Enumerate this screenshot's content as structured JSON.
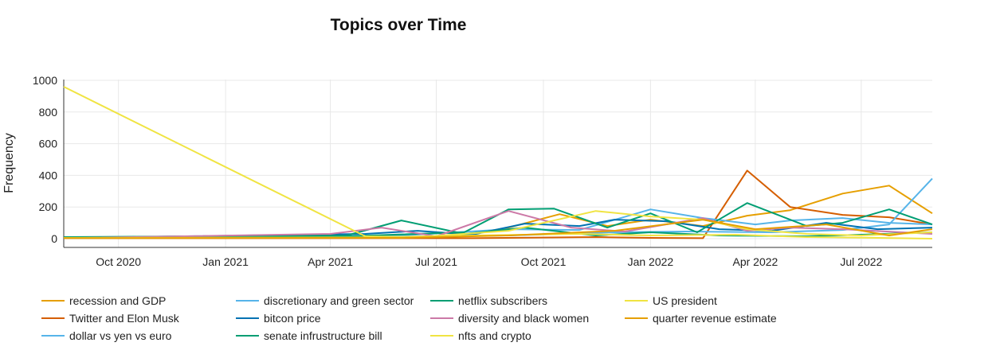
{
  "chart_data": {
    "type": "line",
    "title": "Topics over Time",
    "xlabel": "",
    "ylabel": "Frequency",
    "ylim": [
      -50,
      1000
    ],
    "xlim": [
      "2020-08-15",
      "2022-08-31"
    ],
    "grid": true,
    "legend_position": "bottom",
    "x_ticks": [
      {
        "date": "2020-10-01",
        "label": "Oct 2020"
      },
      {
        "date": "2021-01-01",
        "label": "Jan 2021"
      },
      {
        "date": "2021-04-01",
        "label": "Apr 2021"
      },
      {
        "date": "2021-07-01",
        "label": "Jul 2021"
      },
      {
        "date": "2021-10-01",
        "label": "Oct 2021"
      },
      {
        "date": "2022-01-01",
        "label": "Jan 2022"
      },
      {
        "date": "2022-04-01",
        "label": "Apr 2022"
      },
      {
        "date": "2022-07-01",
        "label": "Jul 2022"
      }
    ],
    "y_ticks": [
      0,
      200,
      400,
      600,
      800,
      1000
    ],
    "series": [
      {
        "name": "recession and GDP",
        "color": "#E69F00",
        "points": [
          [
            "2020-08-15",
            5
          ],
          [
            "2021-04-15",
            15
          ],
          [
            "2021-07-15",
            10
          ],
          [
            "2021-09-01",
            70
          ],
          [
            "2021-10-15",
            155
          ],
          [
            "2021-11-25",
            80
          ],
          [
            "2022-01-01",
            120
          ],
          [
            "2022-02-15",
            80
          ],
          [
            "2022-03-25",
            145
          ],
          [
            "2022-05-01",
            180
          ],
          [
            "2022-06-15",
            285
          ],
          [
            "2022-07-25",
            335
          ],
          [
            "2022-08-31",
            160
          ]
        ]
      },
      {
        "name": "Twitter and Elon Musk",
        "color": "#D55E00",
        "points": [
          [
            "2020-08-15",
            3
          ],
          [
            "2021-05-01",
            3
          ],
          [
            "2021-08-01",
            3
          ],
          [
            "2021-11-15",
            10
          ],
          [
            "2022-01-01",
            5
          ],
          [
            "2022-02-15",
            3
          ],
          [
            "2022-03-25",
            430
          ],
          [
            "2022-05-01",
            200
          ],
          [
            "2022-06-15",
            150
          ],
          [
            "2022-07-25",
            135
          ],
          [
            "2022-08-31",
            90
          ]
        ]
      },
      {
        "name": "dollar vs yen vs euro",
        "color": "#56B4E9",
        "points": [
          [
            "2020-08-15",
            5
          ],
          [
            "2021-06-01",
            10
          ],
          [
            "2021-09-01",
            20
          ],
          [
            "2021-12-01",
            40
          ],
          [
            "2022-02-01",
            45
          ],
          [
            "2022-04-15",
            40
          ],
          [
            "2022-06-15",
            55
          ],
          [
            "2022-07-25",
            90
          ],
          [
            "2022-08-31",
            380
          ]
        ]
      },
      {
        "name": "discretionary and green sector",
        "color": "#56B4E9",
        "points": [
          [
            "2020-08-15",
            3
          ],
          [
            "2021-06-01",
            20
          ],
          [
            "2021-09-01",
            60
          ],
          [
            "2021-11-01",
            55
          ],
          [
            "2022-01-01",
            185
          ],
          [
            "2022-02-15",
            130
          ],
          [
            "2022-04-01",
            90
          ],
          [
            "2022-05-01",
            115
          ],
          [
            "2022-06-15",
            130
          ],
          [
            "2022-07-25",
            100
          ],
          [
            "2022-08-31",
            90
          ]
        ]
      },
      {
        "name": "bitcon price",
        "color": "#0072B2",
        "points": [
          [
            "2020-08-15",
            5
          ],
          [
            "2021-05-01",
            30
          ],
          [
            "2021-06-15",
            50
          ],
          [
            "2021-08-01",
            25
          ],
          [
            "2021-09-15",
            95
          ],
          [
            "2021-11-01",
            80
          ],
          [
            "2021-12-01",
            120
          ],
          [
            "2022-01-15",
            110
          ],
          [
            "2022-03-01",
            60
          ],
          [
            "2022-04-15",
            50
          ],
          [
            "2022-06-01",
            100
          ],
          [
            "2022-07-15",
            60
          ],
          [
            "2022-08-31",
            70
          ]
        ]
      },
      {
        "name": "senate infrustructure bill",
        "color": "#009E73",
        "points": [
          [
            "2020-08-15",
            10
          ],
          [
            "2021-04-15",
            20
          ],
          [
            "2021-06-01",
            115
          ],
          [
            "2021-07-25",
            30
          ],
          [
            "2021-09-15",
            70
          ],
          [
            "2021-11-15",
            20
          ],
          [
            "2022-01-01",
            40
          ],
          [
            "2022-03-01",
            20
          ],
          [
            "2022-05-15",
            15
          ],
          [
            "2022-07-01",
            25
          ],
          [
            "2022-08-31",
            40
          ]
        ]
      },
      {
        "name": "netflix subscribers",
        "color": "#009E73",
        "points": [
          [
            "2020-08-15",
            5
          ],
          [
            "2021-04-15",
            15
          ],
          [
            "2021-07-25",
            40
          ],
          [
            "2021-09-01",
            185
          ],
          [
            "2021-10-10",
            190
          ],
          [
            "2021-11-25",
            70
          ],
          [
            "2022-01-01",
            160
          ],
          [
            "2022-02-10",
            40
          ],
          [
            "2022-03-25",
            225
          ],
          [
            "2022-05-15",
            80
          ],
          [
            "2022-06-15",
            100
          ],
          [
            "2022-07-25",
            185
          ],
          [
            "2022-08-31",
            90
          ]
        ]
      },
      {
        "name": "diversity and black women",
        "color": "#CC79A7",
        "points": [
          [
            "2020-08-15",
            3
          ],
          [
            "2021-04-01",
            30
          ],
          [
            "2021-05-15",
            70
          ],
          [
            "2021-07-01",
            15
          ],
          [
            "2021-09-01",
            175
          ],
          [
            "2021-10-25",
            70
          ],
          [
            "2021-12-10",
            45
          ],
          [
            "2022-02-15",
            130
          ],
          [
            "2022-03-25",
            50
          ],
          [
            "2022-05-01",
            70
          ],
          [
            "2022-06-15",
            60
          ],
          [
            "2022-08-31",
            30
          ]
        ]
      },
      {
        "name": "nfts and crypto",
        "color": "#F0E442",
        "points": [
          [
            "2020-08-15",
            5
          ],
          [
            "2021-05-01",
            8
          ],
          [
            "2021-08-01",
            20
          ],
          [
            "2021-11-01",
            30
          ],
          [
            "2022-01-01",
            20
          ],
          [
            "2022-03-15",
            25
          ],
          [
            "2022-05-15",
            10
          ],
          [
            "2022-07-15",
            5
          ],
          [
            "2022-08-31",
            0
          ]
        ]
      },
      {
        "name": "US president",
        "color": "#F0E442",
        "points": [
          [
            "2020-08-15",
            960
          ],
          [
            "2021-05-01",
            15
          ],
          [
            "2021-06-15",
            10
          ],
          [
            "2021-09-01",
            50
          ],
          [
            "2021-11-15",
            175
          ],
          [
            "2022-01-01",
            140
          ],
          [
            "2022-02-15",
            120
          ],
          [
            "2022-03-25",
            60
          ],
          [
            "2022-05-15",
            30
          ],
          [
            "2022-07-01",
            20
          ],
          [
            "2022-08-31",
            40
          ]
        ]
      },
      {
        "name": "quarter revenue estimate",
        "color": "#E69F00",
        "points": [
          [
            "2020-08-15",
            3
          ],
          [
            "2021-06-01",
            5
          ],
          [
            "2021-09-01",
            20
          ],
          [
            "2021-12-01",
            50
          ],
          [
            "2022-02-15",
            120
          ],
          [
            "2022-04-01",
            60
          ],
          [
            "2022-06-01",
            90
          ],
          [
            "2022-07-25",
            20
          ],
          [
            "2022-08-31",
            60
          ]
        ]
      }
    ]
  }
}
